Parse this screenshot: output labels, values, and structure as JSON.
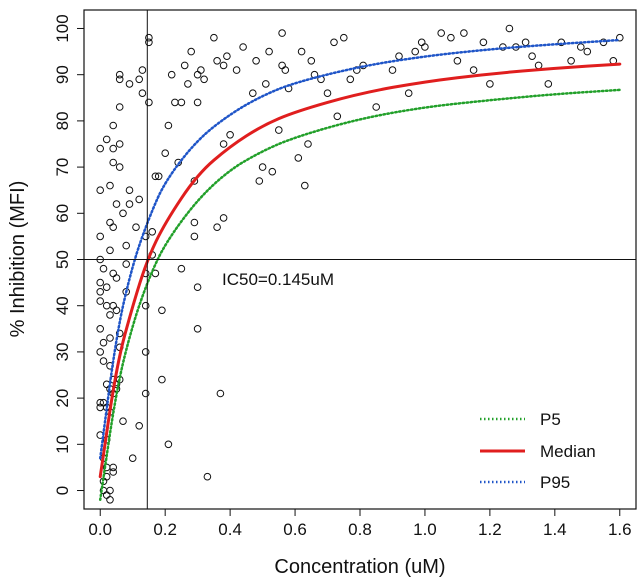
{
  "chart_data": {
    "type": "scatter",
    "xlabel": "Concentration (uM)",
    "ylabel": "% Inhibition (MFI)",
    "xlim": [
      -0.05,
      1.65
    ],
    "ylim": [
      -4,
      104
    ],
    "xticks": [
      "0.0",
      "0.2",
      "0.4",
      "0.6",
      "0.8",
      "1.0",
      "1.2",
      "1.4",
      "1.6"
    ],
    "yticks": [
      "0",
      "10",
      "20",
      "30",
      "40",
      "50",
      "60",
      "70",
      "80",
      "90",
      "100"
    ],
    "ic50": {
      "x": 0.145,
      "label": "IC50=0.145uM"
    },
    "reference_hline": 50,
    "legend_position": "bottom-right",
    "series": [
      {
        "name": "P5",
        "color": "#22a02a",
        "style": "dotted",
        "values": [
          [
            0.0,
            -2
          ],
          [
            0.05,
            22
          ],
          [
            0.1,
            36
          ],
          [
            0.15,
            46
          ],
          [
            0.2,
            53.5
          ],
          [
            0.3,
            63
          ],
          [
            0.4,
            69.5
          ],
          [
            0.5,
            73.5
          ],
          [
            0.6,
            76.5
          ],
          [
            0.8,
            80.5
          ],
          [
            1.0,
            83
          ],
          [
            1.2,
            84.5
          ],
          [
            1.4,
            85.8
          ],
          [
            1.6,
            86.7
          ]
        ]
      },
      {
        "name": "Median",
        "color": "#e01e1e",
        "style": "solid",
        "values": [
          [
            0.0,
            3
          ],
          [
            0.05,
            27
          ],
          [
            0.1,
            40
          ],
          [
            0.145,
            50
          ],
          [
            0.2,
            58
          ],
          [
            0.3,
            68.5
          ],
          [
            0.4,
            74.5
          ],
          [
            0.5,
            79
          ],
          [
            0.6,
            82
          ],
          [
            0.8,
            86
          ],
          [
            1.0,
            88.5
          ],
          [
            1.2,
            90.2
          ],
          [
            1.4,
            91.4
          ],
          [
            1.6,
            92.3
          ]
        ]
      },
      {
        "name": "P95",
        "color": "#1f55c8",
        "style": "dotted",
        "values": [
          [
            0.0,
            7
          ],
          [
            0.05,
            34
          ],
          [
            0.1,
            49
          ],
          [
            0.15,
            59
          ],
          [
            0.2,
            67
          ],
          [
            0.3,
            76
          ],
          [
            0.4,
            81.5
          ],
          [
            0.5,
            85.5
          ],
          [
            0.6,
            88.3
          ],
          [
            0.8,
            91.8
          ],
          [
            1.0,
            94
          ],
          [
            1.2,
            95.5
          ],
          [
            1.4,
            96.6
          ],
          [
            1.6,
            97.5
          ]
        ]
      }
    ],
    "points": [
      [
        0.0,
        74
      ],
      [
        0.0,
        65
      ],
      [
        0.0,
        55
      ],
      [
        0.0,
        50
      ],
      [
        0.0,
        45
      ],
      [
        0.0,
        43
      ],
      [
        0.0,
        41
      ],
      [
        0.0,
        35
      ],
      [
        0.0,
        30
      ],
      [
        0.0,
        19
      ],
      [
        0.0,
        18
      ],
      [
        0.0,
        12
      ],
      [
        0.01,
        48
      ],
      [
        0.01,
        32
      ],
      [
        0.01,
        28
      ],
      [
        0.01,
        19
      ],
      [
        0.01,
        7
      ],
      [
        0.01,
        2
      ],
      [
        0.01,
        0
      ],
      [
        0.02,
        76
      ],
      [
        0.02,
        44
      ],
      [
        0.02,
        40
      ],
      [
        0.02,
        23
      ],
      [
        0.02,
        18
      ],
      [
        0.02,
        11
      ],
      [
        0.02,
        5
      ],
      [
        0.02,
        3
      ],
      [
        0.02,
        -1
      ],
      [
        0.03,
        66
      ],
      [
        0.03,
        58
      ],
      [
        0.03,
        52
      ],
      [
        0.03,
        38
      ],
      [
        0.03,
        33
      ],
      [
        0.03,
        27
      ],
      [
        0.03,
        22
      ],
      [
        0.03,
        17
      ],
      [
        0.03,
        0
      ],
      [
        0.03,
        -2
      ],
      [
        0.04,
        79
      ],
      [
        0.04,
        74
      ],
      [
        0.04,
        71
      ],
      [
        0.04,
        57
      ],
      [
        0.04,
        47
      ],
      [
        0.04,
        40
      ],
      [
        0.04,
        24
      ],
      [
        0.04,
        21
      ],
      [
        0.04,
        4
      ],
      [
        0.04,
        5
      ],
      [
        0.05,
        62
      ],
      [
        0.05,
        46
      ],
      [
        0.05,
        39
      ],
      [
        0.05,
        23
      ],
      [
        0.05,
        22
      ],
      [
        0.06,
        90
      ],
      [
        0.06,
        89
      ],
      [
        0.06,
        83
      ],
      [
        0.06,
        75
      ],
      [
        0.06,
        70
      ],
      [
        0.06,
        34
      ],
      [
        0.06,
        31
      ],
      [
        0.06,
        24
      ],
      [
        0.07,
        60
      ],
      [
        0.07,
        15
      ],
      [
        0.08,
        53
      ],
      [
        0.08,
        49
      ],
      [
        0.08,
        43
      ],
      [
        0.09,
        88
      ],
      [
        0.09,
        65
      ],
      [
        0.09,
        62
      ],
      [
        0.1,
        7
      ],
      [
        0.11,
        57
      ],
      [
        0.12,
        89
      ],
      [
        0.12,
        63
      ],
      [
        0.12,
        14
      ],
      [
        0.13,
        91
      ],
      [
        0.13,
        86
      ],
      [
        0.14,
        55
      ],
      [
        0.14,
        47
      ],
      [
        0.14,
        40
      ],
      [
        0.14,
        30
      ],
      [
        0.14,
        21
      ],
      [
        0.15,
        98
      ],
      [
        0.15,
        97
      ],
      [
        0.15,
        84
      ],
      [
        0.16,
        56
      ],
      [
        0.16,
        51
      ],
      [
        0.17,
        68
      ],
      [
        0.17,
        47
      ],
      [
        0.18,
        68
      ],
      [
        0.19,
        39
      ],
      [
        0.19,
        24
      ],
      [
        0.2,
        73
      ],
      [
        0.21,
        79
      ],
      [
        0.21,
        10
      ],
      [
        0.22,
        90
      ],
      [
        0.23,
        84
      ],
      [
        0.24,
        71
      ],
      [
        0.25,
        84
      ],
      [
        0.25,
        48
      ],
      [
        0.26,
        92
      ],
      [
        0.27,
        88
      ],
      [
        0.28,
        95
      ],
      [
        0.29,
        67
      ],
      [
        0.29,
        58
      ],
      [
        0.29,
        55
      ],
      [
        0.3,
        90
      ],
      [
        0.3,
        84
      ],
      [
        0.3,
        44
      ],
      [
        0.3,
        35
      ],
      [
        0.31,
        91
      ],
      [
        0.32,
        89
      ],
      [
        0.33,
        3
      ],
      [
        0.35,
        98
      ],
      [
        0.36,
        93
      ],
      [
        0.36,
        57
      ],
      [
        0.37,
        21
      ],
      [
        0.38,
        92
      ],
      [
        0.38,
        75
      ],
      [
        0.38,
        59
      ],
      [
        0.39,
        94
      ],
      [
        0.4,
        77
      ],
      [
        0.42,
        91
      ],
      [
        0.44,
        96
      ],
      [
        0.47,
        86
      ],
      [
        0.48,
        93
      ],
      [
        0.49,
        67
      ],
      [
        0.5,
        70
      ],
      [
        0.51,
        88
      ],
      [
        0.52,
        95
      ],
      [
        0.53,
        69
      ],
      [
        0.55,
        78
      ],
      [
        0.56,
        99
      ],
      [
        0.56,
        92
      ],
      [
        0.57,
        91
      ],
      [
        0.58,
        87
      ],
      [
        0.61,
        72
      ],
      [
        0.62,
        95
      ],
      [
        0.63,
        66
      ],
      [
        0.64,
        75
      ],
      [
        0.65,
        93
      ],
      [
        0.66,
        90
      ],
      [
        0.68,
        89
      ],
      [
        0.7,
        86
      ],
      [
        0.72,
        97
      ],
      [
        0.73,
        81
      ],
      [
        0.75,
        98
      ],
      [
        0.77,
        89
      ],
      [
        0.79,
        91
      ],
      [
        0.81,
        92
      ],
      [
        0.85,
        83
      ],
      [
        0.9,
        91
      ],
      [
        0.92,
        94
      ],
      [
        0.95,
        86
      ],
      [
        0.97,
        95
      ],
      [
        0.99,
        97
      ],
      [
        1.0,
        96
      ],
      [
        1.05,
        99
      ],
      [
        1.08,
        98
      ],
      [
        1.1,
        93
      ],
      [
        1.12,
        99
      ],
      [
        1.15,
        91
      ],
      [
        1.18,
        97
      ],
      [
        1.2,
        88
      ],
      [
        1.24,
        96
      ],
      [
        1.26,
        100
      ],
      [
        1.28,
        96
      ],
      [
        1.31,
        97
      ],
      [
        1.33,
        94
      ],
      [
        1.35,
        92
      ],
      [
        1.38,
        88
      ],
      [
        1.42,
        97
      ],
      [
        1.45,
        93
      ],
      [
        1.48,
        96
      ],
      [
        1.5,
        95
      ],
      [
        1.55,
        97
      ],
      [
        1.58,
        93
      ],
      [
        1.6,
        98
      ]
    ]
  }
}
